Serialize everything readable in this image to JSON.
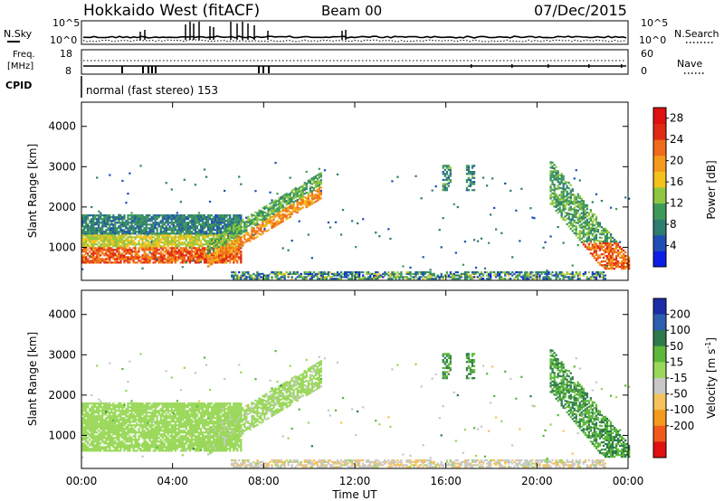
{
  "header": {
    "station": "Hokkaido West (fitACF)",
    "beam": "Beam 00",
    "date": "07/Dec/2015"
  },
  "noise_panel": {
    "left_label": "N.Sky",
    "right_label": "N.Search",
    "left_ticks": [
      "10^5",
      "10^0"
    ],
    "right_ticks": [
      "10^5",
      "10^0"
    ]
  },
  "freq_panel": {
    "left_label_line1": "Freq.",
    "left_label_line2": "[MHz]",
    "left_ticks": [
      "18",
      "8"
    ],
    "right_label": "Nave",
    "right_ticks": [
      "60",
      "0"
    ]
  },
  "cpid": {
    "label": "CPID",
    "mode_text": "normal (fast stereo) 153"
  },
  "colors": {
    "power_scale": [
      "#0a1ee6",
      "#1f4fb4",
      "#2e7d6e",
      "#3e9a5a",
      "#8ec63f",
      "#f3c21b",
      "#f39a1c",
      "#ef6a1b",
      "#e02a14",
      "#e01010"
    ],
    "velocity_scale": [
      "#1b2ea8",
      "#2d5fb0",
      "#2f7a4a",
      "#5cb83a",
      "#9ad85a",
      "#c8c8c8",
      "#f6c25c",
      "#f39a1c",
      "#ef5a1b",
      "#e01010"
    ]
  },
  "chart_data": [
    {
      "type": "heatmap",
      "title": "",
      "xlabel": "Time UT",
      "ylabel": "Slant Range [km]",
      "xlim": [
        "00:00",
        "24:00"
      ],
      "ylim": [
        180,
        4600
      ],
      "x_ticks": [
        "00:00",
        "04:00",
        "08:00",
        "12:00",
        "16:00",
        "20:00",
        "00:00"
      ],
      "y_ticks": [
        1000,
        2000,
        3000,
        4000
      ],
      "colorbar_label": "Power [dB]",
      "colorbar_ticks": [
        4,
        8,
        12,
        16,
        20,
        24,
        28
      ],
      "colorbar_range": [
        0,
        30
      ],
      "scatter_regions": [
        {
          "t_start": 0.0,
          "t_end": 7.0,
          "r_low": 600,
          "r_high": 1700,
          "dominant": "strong echo band (orange/red near 700-1000 km, green/blue above)"
        },
        {
          "t_start": 5.5,
          "t_end": 10.5,
          "r_low": 700,
          "r_high": 2600,
          "dominant": "rising arc to ~2500 km at 09:00-10:00"
        },
        {
          "t_start": 15.8,
          "t_end": 17.2,
          "r_low": 2300,
          "r_high": 3100,
          "dominant": "weak patches"
        },
        {
          "t_start": 20.5,
          "t_end": 24.0,
          "r_low": 500,
          "r_high": 3200,
          "dominant": "descending arcs, orange/red near 600-1000 km"
        },
        {
          "t_start": 6.5,
          "t_end": 23.0,
          "r_low": 180,
          "r_high": 400,
          "dominant": "ground/near-range scatter, mixed"
        }
      ]
    },
    {
      "type": "heatmap",
      "title": "",
      "xlabel": "Time UT",
      "ylabel": "Slant Range [km]",
      "xlim": [
        "00:00",
        "24:00"
      ],
      "ylim": [
        180,
        4600
      ],
      "x_ticks": [
        "00:00",
        "04:00",
        "08:00",
        "12:00",
        "16:00",
        "20:00",
        "00:00"
      ],
      "y_ticks": [
        1000,
        2000,
        3000,
        4000
      ],
      "colorbar_label": "Velocity [m s^-1]",
      "colorbar_ticks": [
        200,
        100,
        50,
        15,
        -15,
        -50,
        -100,
        -200
      ],
      "colorbar_range": [
        -250,
        250
      ],
      "scatter_regions": [
        {
          "t_start": 0.0,
          "t_end": 7.0,
          "r_low": 600,
          "r_high": 1700,
          "dominant": "near zero (grey)"
        },
        {
          "t_start": 5.5,
          "t_end": 10.5,
          "r_low": 700,
          "r_high": 2600,
          "dominant": "grey with some orange"
        },
        {
          "t_start": 20.5,
          "t_end": 24.0,
          "r_low": 500,
          "r_high": 3200,
          "dominant": "green (positive ~50 m/s)"
        },
        {
          "t_start": 7.0,
          "t_end": 23.0,
          "r_low": 180,
          "r_high": 400,
          "dominant": "orange (negative)"
        }
      ]
    }
  ]
}
